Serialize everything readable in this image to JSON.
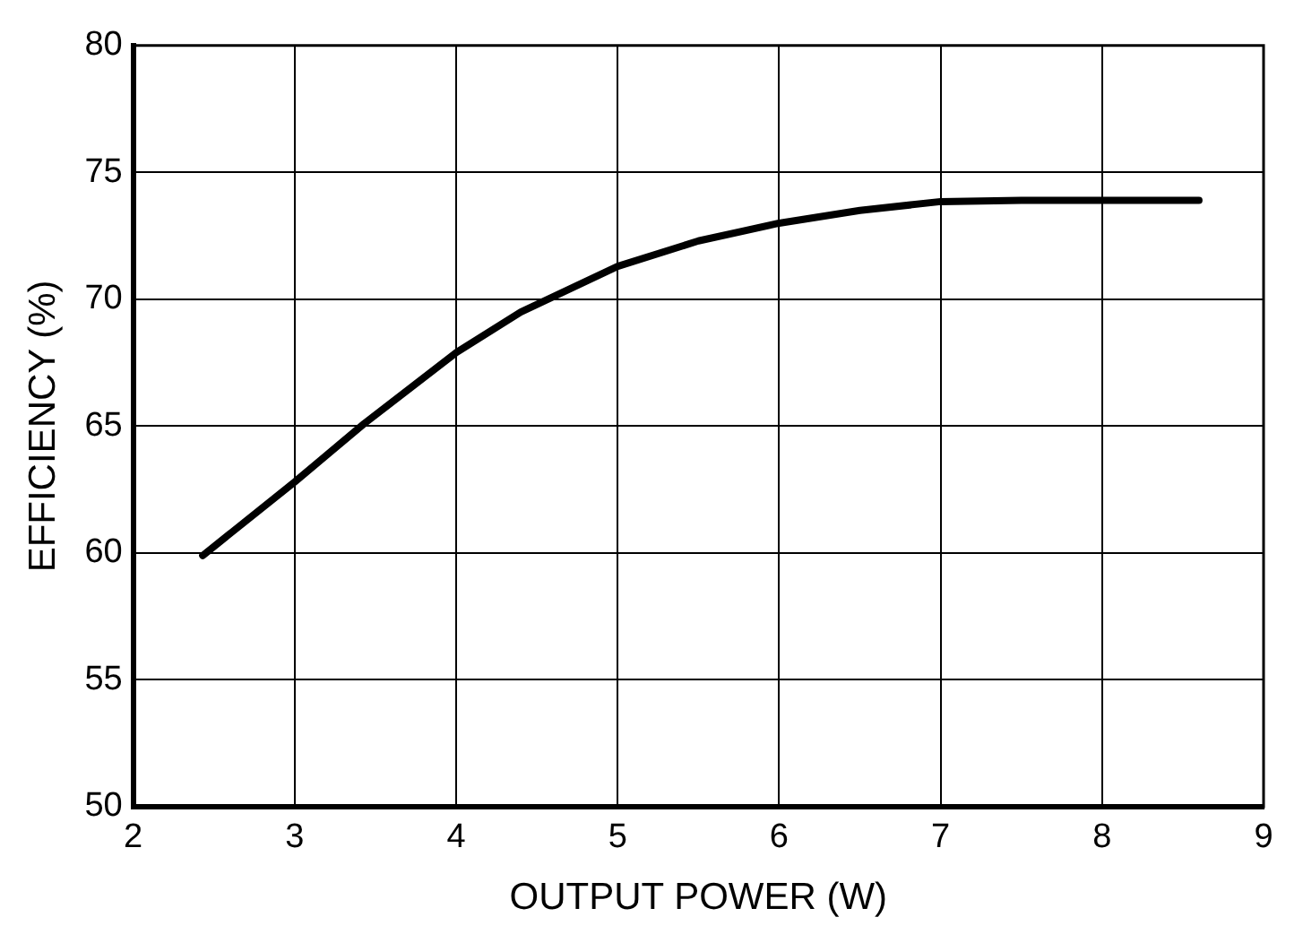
{
  "chart_data": {
    "type": "line",
    "xlabel": "OUTPUT POWER (W)",
    "ylabel": "EFFICIENCY (%)",
    "x": [
      2.43,
      3.0,
      3.43,
      4.0,
      4.4,
      5.0,
      5.5,
      6.0,
      6.5,
      7.0,
      7.5,
      8.0,
      8.6
    ],
    "series": [
      {
        "color": "#000000",
        "values": [
          59.9,
          62.8,
          65.1,
          67.9,
          69.5,
          71.3,
          72.3,
          73.0,
          73.5,
          73.85,
          73.9,
          73.9,
          73.9
        ]
      }
    ],
    "xlim": [
      2,
      9
    ],
    "xticks": [
      2,
      3,
      4,
      5,
      6,
      7,
      8,
      9
    ],
    "ylim": [
      50,
      80
    ],
    "yticks": [
      50,
      55,
      60,
      65,
      70,
      75,
      80
    ],
    "grid": true,
    "legend": false,
    "marker": "none",
    "line_style": "solid"
  }
}
